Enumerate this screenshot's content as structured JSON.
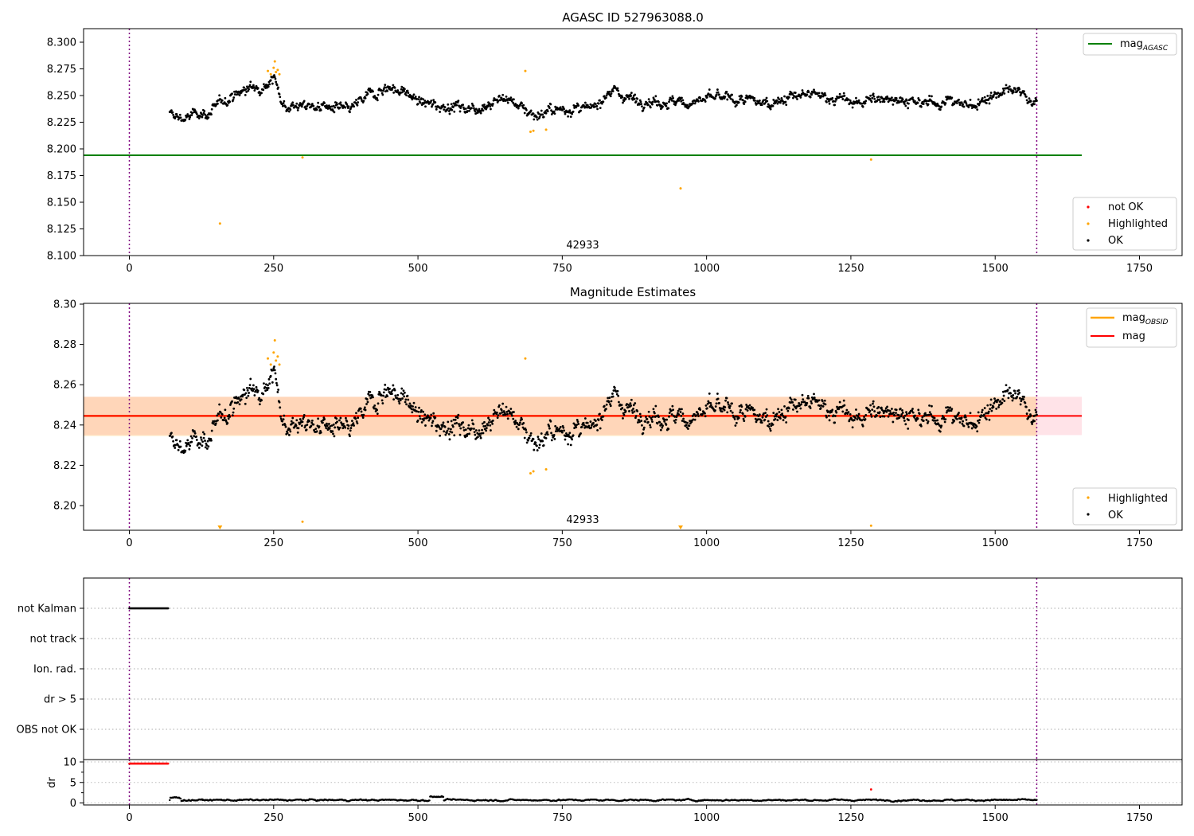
{
  "chart_data": [
    {
      "type": "scatter",
      "title": "AGASC ID 527963088.0",
      "xlabel": "",
      "ylabel": "",
      "xlim": [
        -80,
        1825
      ],
      "ylim": [
        8.1,
        8.31
      ],
      "x_ticks": [
        "0",
        "250",
        "500",
        "750",
        "1000",
        "1250",
        "1500",
        "1750"
      ],
      "y_ticks": [
        "8.100",
        "8.125",
        "8.150",
        "8.175",
        "8.200",
        "8.225",
        "8.250",
        "8.275",
        "8.300"
      ],
      "annotation": "42933",
      "obs_boundaries": [
        0,
        1572
      ],
      "mag_agasc": {
        "name": "mag",
        "subscript": "AGASC",
        "value": 8.194,
        "x_range": [
          -80,
          1650
        ],
        "color": "#008000"
      },
      "legend_lines": [
        {
          "label": "mag",
          "subscript": "AGASC",
          "color": "#008000"
        }
      ],
      "legend_points": [
        {
          "label": "not OK",
          "color": "#ff0000"
        },
        {
          "label": "Highlighted",
          "color": "#ffa500"
        },
        {
          "label": "OK",
          "color": "#000000"
        }
      ],
      "series_ok": {
        "x_range": [
          70,
          1572
        ],
        "baseline": 8.2445,
        "color": "#000000"
      },
      "highlighted_points": [
        {
          "x": 157,
          "y": 8.13
        },
        {
          "x": 240,
          "y": 8.273
        },
        {
          "x": 245,
          "y": 8.27
        },
        {
          "x": 250,
          "y": 8.276
        },
        {
          "x": 252,
          "y": 8.282
        },
        {
          "x": 254,
          "y": 8.272
        },
        {
          "x": 257,
          "y": 8.274
        },
        {
          "x": 260,
          "y": 8.27
        },
        {
          "x": 300,
          "y": 8.192
        },
        {
          "x": 686,
          "y": 8.273
        },
        {
          "x": 695,
          "y": 8.216
        },
        {
          "x": 700,
          "y": 8.217
        },
        {
          "x": 722,
          "y": 8.218
        },
        {
          "x": 955,
          "y": 8.163
        },
        {
          "x": 1285,
          "y": 8.19
        }
      ]
    },
    {
      "type": "scatter",
      "title": "Magnitude Estimates",
      "xlabel": "",
      "ylabel": "",
      "xlim": [
        -80,
        1825
      ],
      "ylim": [
        8.188,
        8.302
      ],
      "x_ticks": [
        "0",
        "250",
        "500",
        "750",
        "1000",
        "1250",
        "1500",
        "1750"
      ],
      "y_ticks": [
        "8.20",
        "8.22",
        "8.24",
        "8.26",
        "8.28",
        "8.30"
      ],
      "annotation": "42933",
      "obs_boundaries": [
        0,
        1572
      ],
      "mag_line": {
        "value": 8.2445,
        "x_range": [
          -80,
          1650
        ],
        "band": [
          8.235,
          8.254
        ],
        "color": "#ff0000"
      },
      "mag_obsid": {
        "value": 8.2445,
        "x_range": [
          -80,
          1572
        ],
        "band": [
          8.2345,
          8.254
        ],
        "color": "#ffa500"
      },
      "legend_lines": [
        {
          "label": "mag",
          "subscript": "OBSID",
          "color": "#ffa500"
        },
        {
          "label": "mag",
          "subscript": "",
          "color": "#ff0000"
        }
      ],
      "legend_points": [
        {
          "label": "Highlighted",
          "color": "#ffa500"
        },
        {
          "label": "OK",
          "color": "#000000"
        }
      ],
      "highlighted_points": [
        {
          "x": 240,
          "y": 8.273
        },
        {
          "x": 245,
          "y": 8.27
        },
        {
          "x": 250,
          "y": 8.276
        },
        {
          "x": 252,
          "y": 8.282
        },
        {
          "x": 254,
          "y": 8.272
        },
        {
          "x": 257,
          "y": 8.274
        },
        {
          "x": 260,
          "y": 8.27
        },
        {
          "x": 300,
          "y": 8.192
        },
        {
          "x": 686,
          "y": 8.273
        },
        {
          "x": 695,
          "y": 8.216
        },
        {
          "x": 700,
          "y": 8.217
        },
        {
          "x": 722,
          "y": 8.218
        },
        {
          "x": 1285,
          "y": 8.19
        }
      ],
      "below_range_markers": [
        {
          "x": 157
        },
        {
          "x": 955
        }
      ]
    },
    {
      "type": "scatter",
      "title": "",
      "xlabel": "",
      "ylabel": "",
      "xlim": [
        -80,
        1825
      ],
      "flag_rows": [
        "not Kalman",
        "not track",
        "Ion. rad.",
        "dr > 5",
        "OBS not OK"
      ],
      "flag_not_kalman_x_range": [
        0,
        68
      ],
      "obs_boundaries": [
        0,
        1572
      ]
    },
    {
      "type": "scatter",
      "title": "",
      "xlabel": "",
      "ylabel": "dr",
      "xlim": [
        -80,
        1825
      ],
      "ylim": [
        -0.5,
        10.5
      ],
      "x_ticks": [
        "0",
        "250",
        "500",
        "750",
        "1000",
        "1250",
        "1500",
        "1750"
      ],
      "y_ticks": [
        "0",
        "5",
        "10"
      ],
      "obs_boundaries": [
        0,
        1572
      ],
      "clipped_points": {
        "x_range": [
          0,
          68
        ],
        "y": 9.6,
        "color": "#ff0000"
      },
      "dr_series": {
        "x_range": [
          70,
          1572
        ],
        "typical": 0.7,
        "color": "#000000"
      },
      "red_points": [
        {
          "x": 1285,
          "y": 3.3
        }
      ]
    }
  ]
}
